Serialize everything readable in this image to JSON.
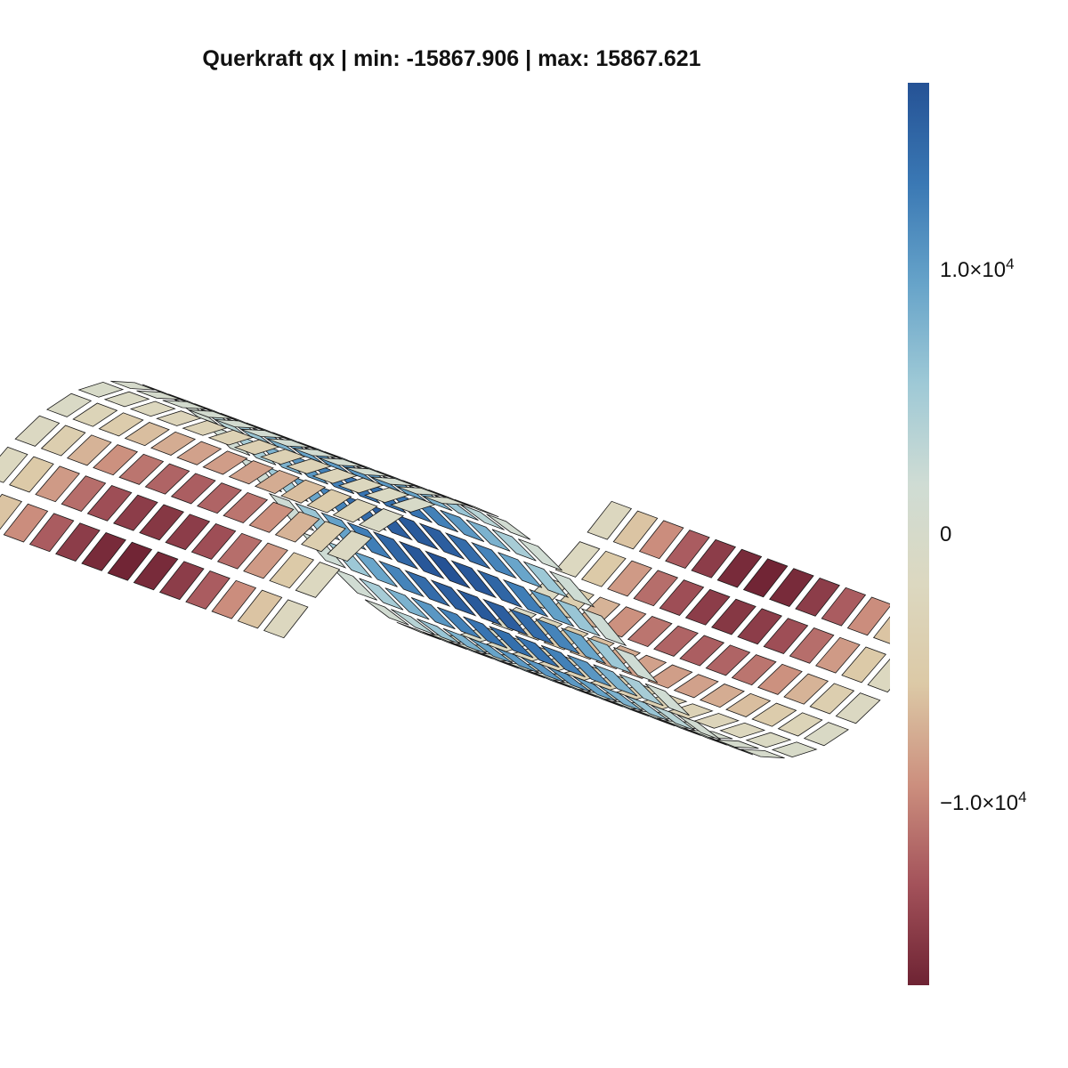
{
  "chart_data": {
    "type": "surface3d",
    "title": "Querkraft qx | min: -15867.906 | max: 15867.621",
    "value_min": -15867.906,
    "value_max": 15867.621,
    "colormap": [
      "#6e2333",
      "#a3525a",
      "#cc8f7e",
      "#dcc9a6",
      "#dcd8c0",
      "#cfdcd4",
      "#9ec9d6",
      "#66a3c9",
      "#3a78b4",
      "#255295"
    ],
    "colorbar": {
      "ticks": [
        {
          "value": 10000,
          "mantissa": "1.0×10",
          "exponent": "4"
        },
        {
          "value": 0,
          "mantissa": "0",
          "exponent": ""
        },
        {
          "value": -10000,
          "mantissa": "−1.0×10",
          "exponent": "4"
        }
      ]
    },
    "grid": {
      "nx": 21,
      "ny": 13
    },
    "surface": {
      "description_free": true,
      "x_range": [
        0,
        1
      ],
      "y_range": [
        0,
        1
      ],
      "deflection_shape": "sin(2*pi*x)",
      "field_shape": "qx = -cos(2*pi*x) * sin(pi*y)"
    }
  }
}
